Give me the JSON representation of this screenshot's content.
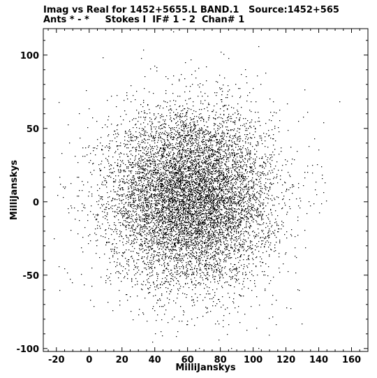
{
  "chart_data": {
    "type": "scatter",
    "title_line1": "Imag vs Real for 1452+5655.L BAND.1   Source:1452+565",
    "title_line2": "Ants * - *     Stokes I  IF# 1 - 2  Chan# 1",
    "xlabel": "MilliJanskys",
    "ylabel": "MilliJanskys",
    "xlim": [
      -28,
      170
    ],
    "ylim": [
      -102,
      118
    ],
    "x_ticks": [
      -20,
      0,
      20,
      40,
      60,
      80,
      100,
      120,
      140,
      160
    ],
    "y_ticks": [
      -100,
      -50,
      0,
      50,
      100
    ],
    "x_tick_labels": [
      "-20",
      "0",
      "20",
      "40",
      "60",
      "80",
      "100",
      "120",
      "140",
      "160"
    ],
    "y_tick_labels": [
      "-100",
      "-50",
      "0",
      "50",
      "100"
    ],
    "grid": false,
    "marker_color": "#000000",
    "distribution": {
      "description_note": "",
      "n_points": 9000,
      "center": [
        62,
        3
      ],
      "std": [
        25,
        30
      ]
    }
  }
}
